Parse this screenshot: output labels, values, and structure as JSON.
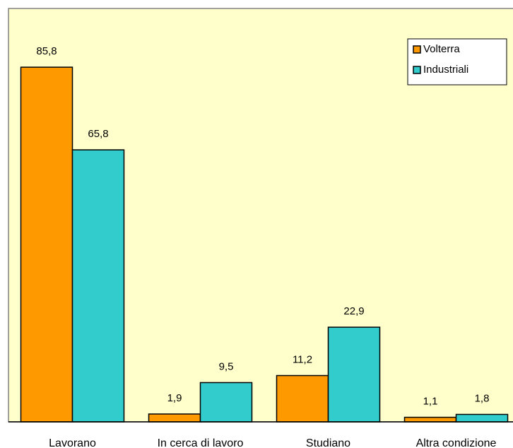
{
  "chart_data": {
    "type": "bar",
    "categories": [
      "Lavorano",
      "In cerca di lavoro",
      "Studiano",
      "Altra condizione"
    ],
    "series": [
      {
        "name": "Volterra",
        "color": "#ff9900",
        "values": [
          85.8,
          1.9,
          11.2,
          1.1
        ],
        "value_labels": [
          "85,8",
          "1,9",
          "11,2",
          "1,1"
        ]
      },
      {
        "name": "Industriali",
        "color": "#33cccc",
        "values": [
          65.8,
          9.5,
          22.9,
          1.8
        ],
        "value_labels": [
          "65,8",
          "9,5",
          "22,9",
          "1,8"
        ]
      }
    ],
    "ylim": [
      0,
      100
    ],
    "legend": "upper right",
    "background": "#ffffcc"
  }
}
